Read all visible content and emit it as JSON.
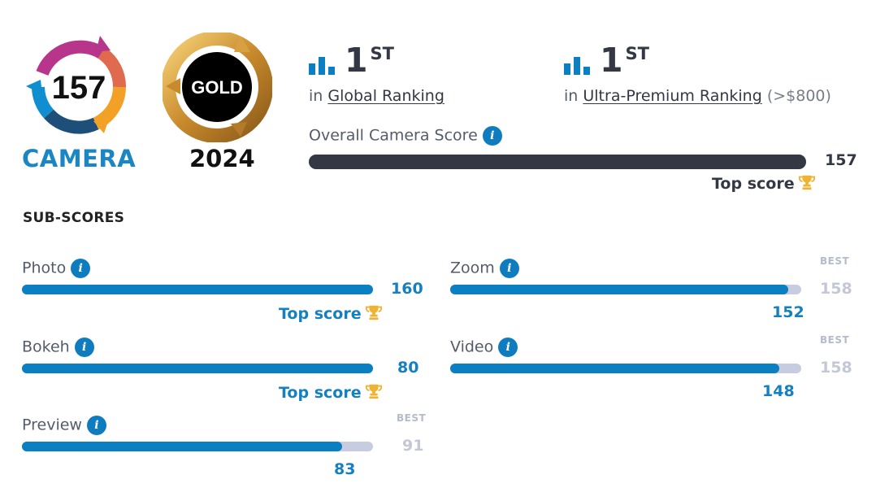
{
  "badge": {
    "score": "157",
    "category": "CAMERA",
    "award": "GOLD",
    "year": "2024"
  },
  "rankings": [
    {
      "rank": "1",
      "suffix": "ST",
      "prefix": "in",
      "name": "Global Ranking",
      "extra": ""
    },
    {
      "rank": "1",
      "suffix": "ST",
      "prefix": "in",
      "name": "Ultra-Premium Ranking",
      "extra": "(>$800)"
    }
  ],
  "overall": {
    "label": "Overall Camera Score",
    "value": "157",
    "progress": 1.0,
    "top_label": "Top score"
  },
  "subscores": {
    "title": "SUB-SCORES",
    "info_glyph": "i",
    "best_label": "BEST",
    "items": [
      {
        "label": "Photo",
        "value": "160",
        "best": "",
        "progress": 1.0,
        "top_label": "Top score"
      },
      {
        "label": "Zoom",
        "value": "152",
        "best": "158",
        "progress": 0.962,
        "top_label": ""
      },
      {
        "label": "Bokeh",
        "value": "80",
        "best": "",
        "progress": 1.0,
        "top_label": "Top score"
      },
      {
        "label": "Video",
        "value": "148",
        "best": "158",
        "progress": 0.937,
        "top_label": ""
      },
      {
        "label": "Preview",
        "value": "83",
        "best": "91",
        "progress": 0.912,
        "top_label": ""
      }
    ]
  },
  "colors": {
    "accent_blue": "#0a7fc2",
    "dark": "#333844",
    "track": "#c7cce0",
    "gold": "#f0b232"
  }
}
